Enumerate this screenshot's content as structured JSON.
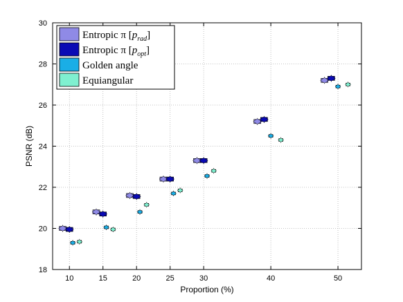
{
  "chart_data": {
    "type": "boxplot",
    "xlabel": "Proportion (%)",
    "ylabel": "PSNR (dB)",
    "xlim": [
      7.5,
      53.5
    ],
    "ylim": [
      18,
      30
    ],
    "xticks": [
      10,
      15,
      20,
      25,
      30,
      40,
      50
    ],
    "yticks": [
      18,
      20,
      22,
      24,
      26,
      28,
      30
    ],
    "grid": true,
    "legend_position": "top-left",
    "series": [
      {
        "name": "Entropic π [p_rad]",
        "legend_main": "Entropic π [",
        "legend_sub": "rad",
        "color": "#8f8ae6",
        "x": [
          9,
          14,
          19,
          24,
          29,
          38,
          48
        ],
        "values": [
          20.0,
          20.8,
          21.6,
          22.4,
          23.3,
          25.2,
          27.2
        ]
      },
      {
        "name": "Entropic π [p_opt]",
        "legend_main": "Entropic π [",
        "legend_sub": "opt",
        "color": "#0a0ab4",
        "x": [
          10,
          15,
          20,
          25,
          30,
          39,
          49
        ],
        "values": [
          19.95,
          20.7,
          21.55,
          22.4,
          23.3,
          25.3,
          27.3
        ]
      },
      {
        "name": "Golden angle",
        "color": "#1aaee6",
        "x": [
          10.5,
          15.5,
          20.5,
          25.5,
          30.5,
          40,
          50
        ],
        "values": [
          19.3,
          20.05,
          20.8,
          21.7,
          22.55,
          24.5,
          26.9
        ]
      },
      {
        "name": "Equiangular",
        "color": "#7ff0d0",
        "x": [
          11.5,
          16.5,
          21.5,
          26.5,
          31.5,
          41.5,
          51.5
        ],
        "values": [
          19.35,
          19.95,
          21.15,
          21.85,
          22.8,
          24.3,
          27.0
        ]
      }
    ]
  }
}
